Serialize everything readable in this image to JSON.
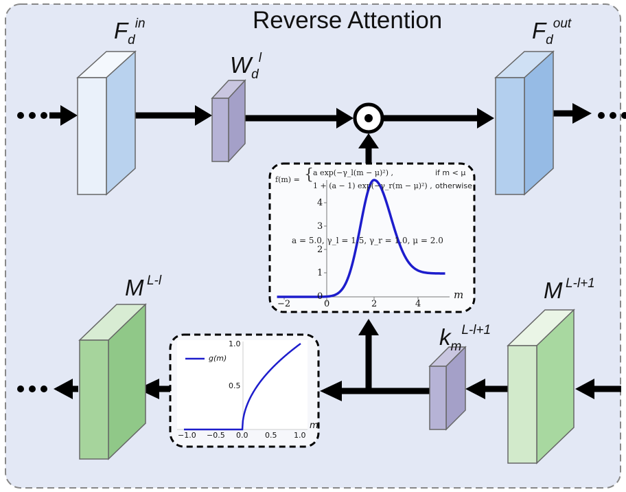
{
  "title": "Reverse Attention",
  "labels": {
    "f_in": {
      "base": "F",
      "sub": "d",
      "sup": "in"
    },
    "w": {
      "base": "W",
      "sub": "d",
      "sup": "l"
    },
    "f_out": {
      "base": "F",
      "sub": "d",
      "sup": "out"
    },
    "m_left": {
      "base": "M",
      "sup": "L-l"
    },
    "m_right": {
      "base": "M",
      "sup": "L-l+1"
    },
    "k": {
      "base": "k",
      "sub": "m",
      "sup": "L-l+1"
    }
  },
  "colors": {
    "background": "#e3e8f5",
    "frame": "#888888",
    "blue_light": "#edf3fb",
    "blue_mid": "#b9d2ee",
    "blue_dark": "#96bbe5",
    "purple": "#aaa6cc",
    "green_light": "#cfe6c6",
    "green_mid": "#a3d39b",
    "curve": "#1d1dcc"
  },
  "top_plot": {
    "formula": {
      "lhs": "f(m) =",
      "case1": "a exp(−γ_l(m − μ)²) ,",
      "cond1": "if m < μ",
      "case2": "1 + (a − 1) exp(−γ_r(m − μ)²) ,",
      "cond2": "otherwise"
    },
    "params": "a = 5.0, γ_l = 1.5,   γ_r = 1.0, μ = 2.0",
    "x_ticks": [
      "−2",
      "0",
      "2",
      "4"
    ],
    "y_ticks": [
      "0",
      "1",
      "2",
      "3",
      "4"
    ],
    "x_label": "m"
  },
  "bottom_plot": {
    "legend": "g(m)",
    "x_ticks": [
      "−1.0",
      "−0.5",
      "0.0",
      "0.5",
      "1.0"
    ],
    "y_ticks": [
      "0.5",
      "1.0"
    ],
    "x_label": "m"
  },
  "chart_data": [
    {
      "type": "line",
      "x_range": [
        -2.1,
        5.0
      ],
      "y_range": [
        0,
        5
      ],
      "series": [
        {
          "function": "f(m)",
          "a": 5.0,
          "gamma_l": 1.5,
          "gamma_r": 1.0,
          "mu": 2.0
        }
      ]
    },
    {
      "type": "line",
      "x_range": [
        -1.0,
        1.0
      ],
      "y_range": [
        0,
        1.0
      ],
      "series": [
        {
          "name": "g(m)",
          "function": "sqrt(max(m,0))"
        }
      ]
    }
  ]
}
